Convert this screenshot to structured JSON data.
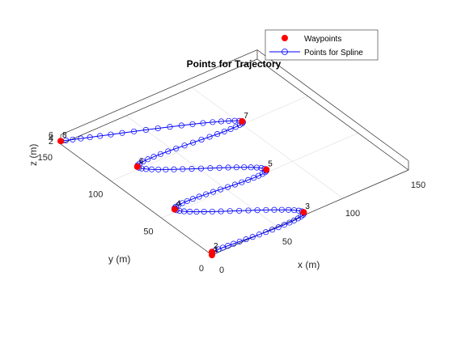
{
  "chart_data": {
    "type": "scatter",
    "title": "Points for Trajectory",
    "xlabel": "x (m)",
    "ylabel": "y (m)",
    "zlabel": "z (m)",
    "xlim": [
      0,
      150
    ],
    "ylim": [
      0,
      150
    ],
    "zlim": [
      0,
      6
    ],
    "x_ticks": [
      "0",
      "50",
      "100",
      "150"
    ],
    "y_ticks": [
      "0",
      "50",
      "100",
      "150"
    ],
    "z_ticks": [
      "2",
      "4",
      "6"
    ],
    "grid": true,
    "legend_position": "top-right",
    "legend": [
      "Waypoints",
      "Points for Spline"
    ],
    "colors": {
      "waypoints": "#ff0000",
      "spline": "#0000ff",
      "axes": "#262626",
      "grid": "#e6e6e6"
    },
    "waypoints": {
      "x": [
        0,
        0,
        70,
        10,
        80,
        20,
        100,
        0
      ],
      "y": [
        0,
        0,
        0,
        50,
        50,
        100,
        100,
        150
      ],
      "z": [
        0,
        2,
        2,
        2,
        2,
        2,
        2,
        2
      ],
      "labels": [
        "1",
        "2",
        "3",
        "4",
        "5",
        "6",
        "7",
        "8"
      ]
    },
    "spline_points_per_segment": 20
  }
}
